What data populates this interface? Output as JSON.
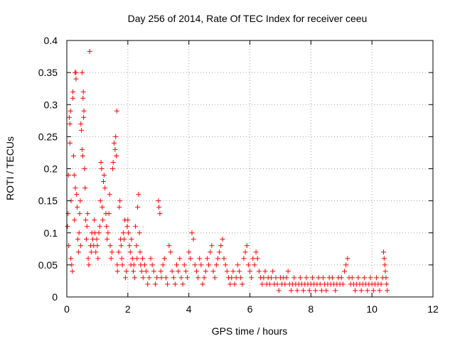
{
  "chart_data": {
    "type": "scatter",
    "title": "Day 256 of 2014, Rate Of TEC Index for receiver ceeu",
    "xlabel": "GPS time / hours",
    "ylabel": "ROTI / TECUs",
    "xlim": [
      0,
      12
    ],
    "ylim": [
      0,
      0.4
    ],
    "xticks": [
      0,
      2,
      4,
      6,
      8,
      10,
      12
    ],
    "xtick_labels": [
      "0",
      "2",
      "4",
      "6",
      "8",
      "10",
      "12"
    ],
    "yticks": [
      0,
      0.05,
      0.1,
      0.15,
      0.2,
      0.25,
      0.3,
      0.35,
      0.4
    ],
    "ytick_labels": [
      "0",
      "0.05",
      "0.1",
      "0.15",
      "0.2",
      "0.25",
      "0.3",
      "0.35",
      "0.4"
    ],
    "grid": true,
    "marker": "+",
    "color": "#ff0000",
    "series": [
      {
        "name": "ROTI",
        "points": [
          [
            0.02,
            0.11
          ],
          [
            0.04,
            0.13
          ],
          [
            0.05,
            0.19
          ],
          [
            0.06,
            0.08
          ],
          [
            0.08,
            0.28
          ],
          [
            0.1,
            0.27
          ],
          [
            0.1,
            0.24
          ],
          [
            0.12,
            0.29
          ],
          [
            0.13,
            0.06
          ],
          [
            0.14,
            0.15
          ],
          [
            0.16,
            0.05
          ],
          [
            0.18,
            0.04
          ],
          [
            0.2,
            0.31
          ],
          [
            0.2,
            0.32
          ],
          [
            0.22,
            0.22
          ],
          [
            0.24,
            0.19
          ],
          [
            0.25,
            0.12
          ],
          [
            0.27,
            0.35
          ],
          [
            0.28,
            0.17
          ],
          [
            0.3,
            0.35
          ],
          [
            0.3,
            0.34
          ],
          [
            0.32,
            0.16
          ],
          [
            0.34,
            0.14
          ],
          [
            0.36,
            0.09
          ],
          [
            0.38,
            0.07
          ],
          [
            0.4,
            0.1
          ],
          [
            0.42,
            0.13
          ],
          [
            0.44,
            0.15
          ],
          [
            0.45,
            0.08
          ],
          [
            0.46,
            0.27
          ],
          [
            0.48,
            0.26
          ],
          [
            0.5,
            0.23
          ],
          [
            0.5,
            0.35
          ],
          [
            0.52,
            0.22
          ],
          [
            0.53,
            0.31
          ],
          [
            0.54,
            0.32
          ],
          [
            0.55,
            0.28
          ],
          [
            0.56,
            0.29
          ],
          [
            0.58,
            0.2
          ],
          [
            0.6,
            0.17
          ],
          [
            0.62,
            0.12
          ],
          [
            0.64,
            0.09
          ],
          [
            0.66,
            0.11
          ],
          [
            0.68,
            0.13
          ],
          [
            0.7,
            0.06
          ],
          [
            0.72,
            0.05
          ],
          [
            0.75,
            0.383
          ],
          [
            0.78,
            0.08
          ],
          [
            0.8,
            0.07
          ],
          [
            0.82,
            0.1
          ],
          [
            0.85,
            0.09
          ],
          [
            0.88,
            0.08
          ],
          [
            0.9,
            0.12
          ],
          [
            0.92,
            0.1
          ],
          [
            0.95,
            0.07
          ],
          [
            0.98,
            0.09
          ],
          [
            1.0,
            0.08
          ],
          [
            1.02,
            0.06
          ],
          [
            1.05,
            0.1
          ],
          [
            1.08,
            0.11
          ],
          [
            1.1,
            0.15
          ],
          [
            1.12,
            0.21
          ],
          [
            1.14,
            0.2
          ],
          [
            1.16,
            0.14
          ],
          [
            1.18,
            0.12
          ],
          [
            1.2,
            0.18
          ],
          [
            1.22,
            0.19
          ],
          [
            1.25,
            0.17
          ],
          [
            1.28,
            0.13
          ],
          [
            1.3,
            0.11
          ],
          [
            1.32,
            0.09
          ],
          [
            1.35,
            0.1
          ],
          [
            1.38,
            0.13
          ],
          [
            1.4,
            0.16
          ],
          [
            1.42,
            0.08
          ],
          [
            1.45,
            0.06
          ],
          [
            1.48,
            0.07
          ],
          [
            1.5,
            0.2
          ],
          [
            1.52,
            0.21
          ],
          [
            1.55,
            0.24
          ],
          [
            1.58,
            0.23
          ],
          [
            1.6,
            0.25
          ],
          [
            1.62,
            0.22
          ],
          [
            1.64,
            0.29
          ],
          [
            1.65,
            0.05
          ],
          [
            1.66,
            0.04
          ],
          [
            1.7,
            0.07
          ],
          [
            1.72,
            0.14
          ],
          [
            1.74,
            0.15
          ],
          [
            1.76,
            0.09
          ],
          [
            1.78,
            0.08
          ],
          [
            1.8,
            0.06
          ],
          [
            1.82,
            0.05
          ],
          [
            1.85,
            0.1
          ],
          [
            1.88,
            0.09
          ],
          [
            1.9,
            0.12
          ],
          [
            1.92,
            0.03
          ],
          [
            1.95,
            0.04
          ],
          [
            1.98,
            0.11
          ],
          [
            2.0,
            0.12
          ],
          [
            2.02,
            0.1
          ],
          [
            2.05,
            0.08
          ],
          [
            2.08,
            0.07
          ],
          [
            2.1,
            0.05
          ],
          [
            2.12,
            0.09
          ],
          [
            2.15,
            0.06
          ],
          [
            2.18,
            0.04
          ],
          [
            2.2,
            0.05
          ],
          [
            2.22,
            0.03
          ],
          [
            2.25,
            0.11
          ],
          [
            2.28,
            0.08
          ],
          [
            2.3,
            0.06
          ],
          [
            2.32,
            0.14
          ],
          [
            2.35,
            0.16
          ],
          [
            2.38,
            0.1
          ],
          [
            2.4,
            0.07
          ],
          [
            2.42,
            0.05
          ],
          [
            2.45,
            0.04
          ],
          [
            2.48,
            0.06
          ],
          [
            2.5,
            0.03
          ],
          [
            2.55,
            0.05
          ],
          [
            2.6,
            0.04
          ],
          [
            2.65,
            0.02
          ],
          [
            2.7,
            0.03
          ],
          [
            2.75,
            0.06
          ],
          [
            2.8,
            0.05
          ],
          [
            2.85,
            0.04
          ],
          [
            2.9,
            0.02
          ],
          [
            2.95,
            0.03
          ],
          [
            3.0,
            0.15
          ],
          [
            3.02,
            0.14
          ],
          [
            3.05,
            0.13
          ],
          [
            3.08,
            0.04
          ],
          [
            3.1,
            0.03
          ],
          [
            3.15,
            0.05
          ],
          [
            3.2,
            0.06
          ],
          [
            3.25,
            0.03
          ],
          [
            3.3,
            0.02
          ],
          [
            3.35,
            0.08
          ],
          [
            3.4,
            0.07
          ],
          [
            3.45,
            0.04
          ],
          [
            3.5,
            0.03
          ],
          [
            3.55,
            0.02
          ],
          [
            3.6,
            0.05
          ],
          [
            3.65,
            0.04
          ],
          [
            3.7,
            0.06
          ],
          [
            3.75,
            0.03
          ],
          [
            3.8,
            0.02
          ],
          [
            3.85,
            0.05
          ],
          [
            3.9,
            0.04
          ],
          [
            3.95,
            0.03
          ],
          [
            4.0,
            0.07
          ],
          [
            4.05,
            0.06
          ],
          [
            4.1,
            0.1
          ],
          [
            4.15,
            0.09
          ],
          [
            4.2,
            0.05
          ],
          [
            4.25,
            0.04
          ],
          [
            4.3,
            0.03
          ],
          [
            4.35,
            0.06
          ],
          [
            4.4,
            0.05
          ],
          [
            4.45,
            0.02
          ],
          [
            4.5,
            0.03
          ],
          [
            4.55,
            0.04
          ],
          [
            4.6,
            0.06
          ],
          [
            4.65,
            0.05
          ],
          [
            4.7,
            0.07
          ],
          [
            4.75,
            0.08
          ],
          [
            4.8,
            0.04
          ],
          [
            4.85,
            0.03
          ],
          [
            4.9,
            0.05
          ],
          [
            4.95,
            0.06
          ],
          [
            5.0,
            0.07
          ],
          [
            5.05,
            0.08
          ],
          [
            5.1,
            0.09
          ],
          [
            5.15,
            0.06
          ],
          [
            5.2,
            0.05
          ],
          [
            5.25,
            0.04
          ],
          [
            5.3,
            0.03
          ],
          [
            5.35,
            0.02
          ],
          [
            5.4,
            0.03
          ],
          [
            5.45,
            0.04
          ],
          [
            5.5,
            0.02
          ],
          [
            5.55,
            0.03
          ],
          [
            5.6,
            0.05
          ],
          [
            5.65,
            0.04
          ],
          [
            5.7,
            0.03
          ],
          [
            5.75,
            0.02
          ],
          [
            5.8,
            0.06
          ],
          [
            5.85,
            0.07
          ],
          [
            5.9,
            0.08
          ],
          [
            5.95,
            0.05
          ],
          [
            6.0,
            0.04
          ],
          [
            6.05,
            0.03
          ],
          [
            6.1,
            0.06
          ],
          [
            6.15,
            0.05
          ],
          [
            6.2,
            0.07
          ],
          [
            6.25,
            0.06
          ],
          [
            6.3,
            0.04
          ],
          [
            6.35,
            0.03
          ],
          [
            6.4,
            0.02
          ],
          [
            6.45,
            0.03
          ],
          [
            6.5,
            0.04
          ],
          [
            6.55,
            0.02
          ],
          [
            6.6,
            0.03
          ],
          [
            6.65,
            0.02
          ],
          [
            6.7,
            0.03
          ],
          [
            6.75,
            0.04
          ],
          [
            6.8,
            0.02
          ],
          [
            6.85,
            0.03
          ],
          [
            6.9,
            0.02
          ],
          [
            6.95,
            0.01
          ],
          [
            7.0,
            0.03
          ],
          [
            7.05,
            0.02
          ],
          [
            7.1,
            0.03
          ],
          [
            7.15,
            0.02
          ],
          [
            7.2,
            0.03
          ],
          [
            7.25,
            0.04
          ],
          [
            7.3,
            0.02
          ],
          [
            7.35,
            0.01
          ],
          [
            7.4,
            0.02
          ],
          [
            7.45,
            0.03
          ],
          [
            7.5,
            0.02
          ],
          [
            7.55,
            0.01
          ],
          [
            7.6,
            0.02
          ],
          [
            7.65,
            0.03
          ],
          [
            7.7,
            0.02
          ],
          [
            7.75,
            0.01
          ],
          [
            7.8,
            0.02
          ],
          [
            7.85,
            0.03
          ],
          [
            7.9,
            0.02
          ],
          [
            7.95,
            0.01
          ],
          [
            8.0,
            0.02
          ],
          [
            8.05,
            0.03
          ],
          [
            8.1,
            0.02
          ],
          [
            8.15,
            0.01
          ],
          [
            8.2,
            0.02
          ],
          [
            8.25,
            0.03
          ],
          [
            8.3,
            0.02
          ],
          [
            8.35,
            0.01
          ],
          [
            8.4,
            0.03
          ],
          [
            8.45,
            0.02
          ],
          [
            8.5,
            0.01
          ],
          [
            8.55,
            0.02
          ],
          [
            8.6,
            0.03
          ],
          [
            8.65,
            0.02
          ],
          [
            8.7,
            0.03
          ],
          [
            8.75,
            0.02
          ],
          [
            8.8,
            0.01
          ],
          [
            8.85,
            0.02
          ],
          [
            8.9,
            0.03
          ],
          [
            8.95,
            0.02
          ],
          [
            9.0,
            0.03
          ],
          [
            9.05,
            0.02
          ],
          [
            9.1,
            0.04
          ],
          [
            9.15,
            0.05
          ],
          [
            9.2,
            0.06
          ],
          [
            9.25,
            0.03
          ],
          [
            9.3,
            0.02
          ],
          [
            9.35,
            0.03
          ],
          [
            9.4,
            0.02
          ],
          [
            9.45,
            0.01
          ],
          [
            9.5,
            0.02
          ],
          [
            9.55,
            0.03
          ],
          [
            9.6,
            0.02
          ],
          [
            9.65,
            0.01
          ],
          [
            9.7,
            0.02
          ],
          [
            9.75,
            0.03
          ],
          [
            9.8,
            0.02
          ],
          [
            9.85,
            0.01
          ],
          [
            9.9,
            0.02
          ],
          [
            9.95,
            0.03
          ],
          [
            10.0,
            0.02
          ],
          [
            10.05,
            0.01
          ],
          [
            10.1,
            0.02
          ],
          [
            10.15,
            0.03
          ],
          [
            10.2,
            0.02
          ],
          [
            10.25,
            0.01
          ],
          [
            10.3,
            0.02
          ],
          [
            10.35,
            0.03
          ],
          [
            10.38,
            0.07
          ],
          [
            10.4,
            0.06
          ],
          [
            10.42,
            0.05
          ],
          [
            10.44,
            0.04
          ],
          [
            10.46,
            0.03
          ],
          [
            10.48,
            0.02
          ],
          [
            10.5,
            0.01
          ]
        ]
      }
    ]
  }
}
